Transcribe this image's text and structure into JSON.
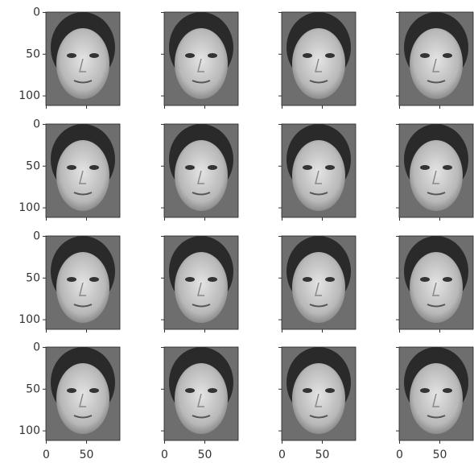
{
  "chart_data": {
    "type": "image-grid",
    "rows": 4,
    "cols": 4,
    "xlim": [
      -0.5,
      91.5
    ],
    "ylim": [
      111.5,
      -0.5
    ],
    "xticks": [
      0,
      50
    ],
    "yticks": [
      0,
      50,
      100
    ]
  }
}
